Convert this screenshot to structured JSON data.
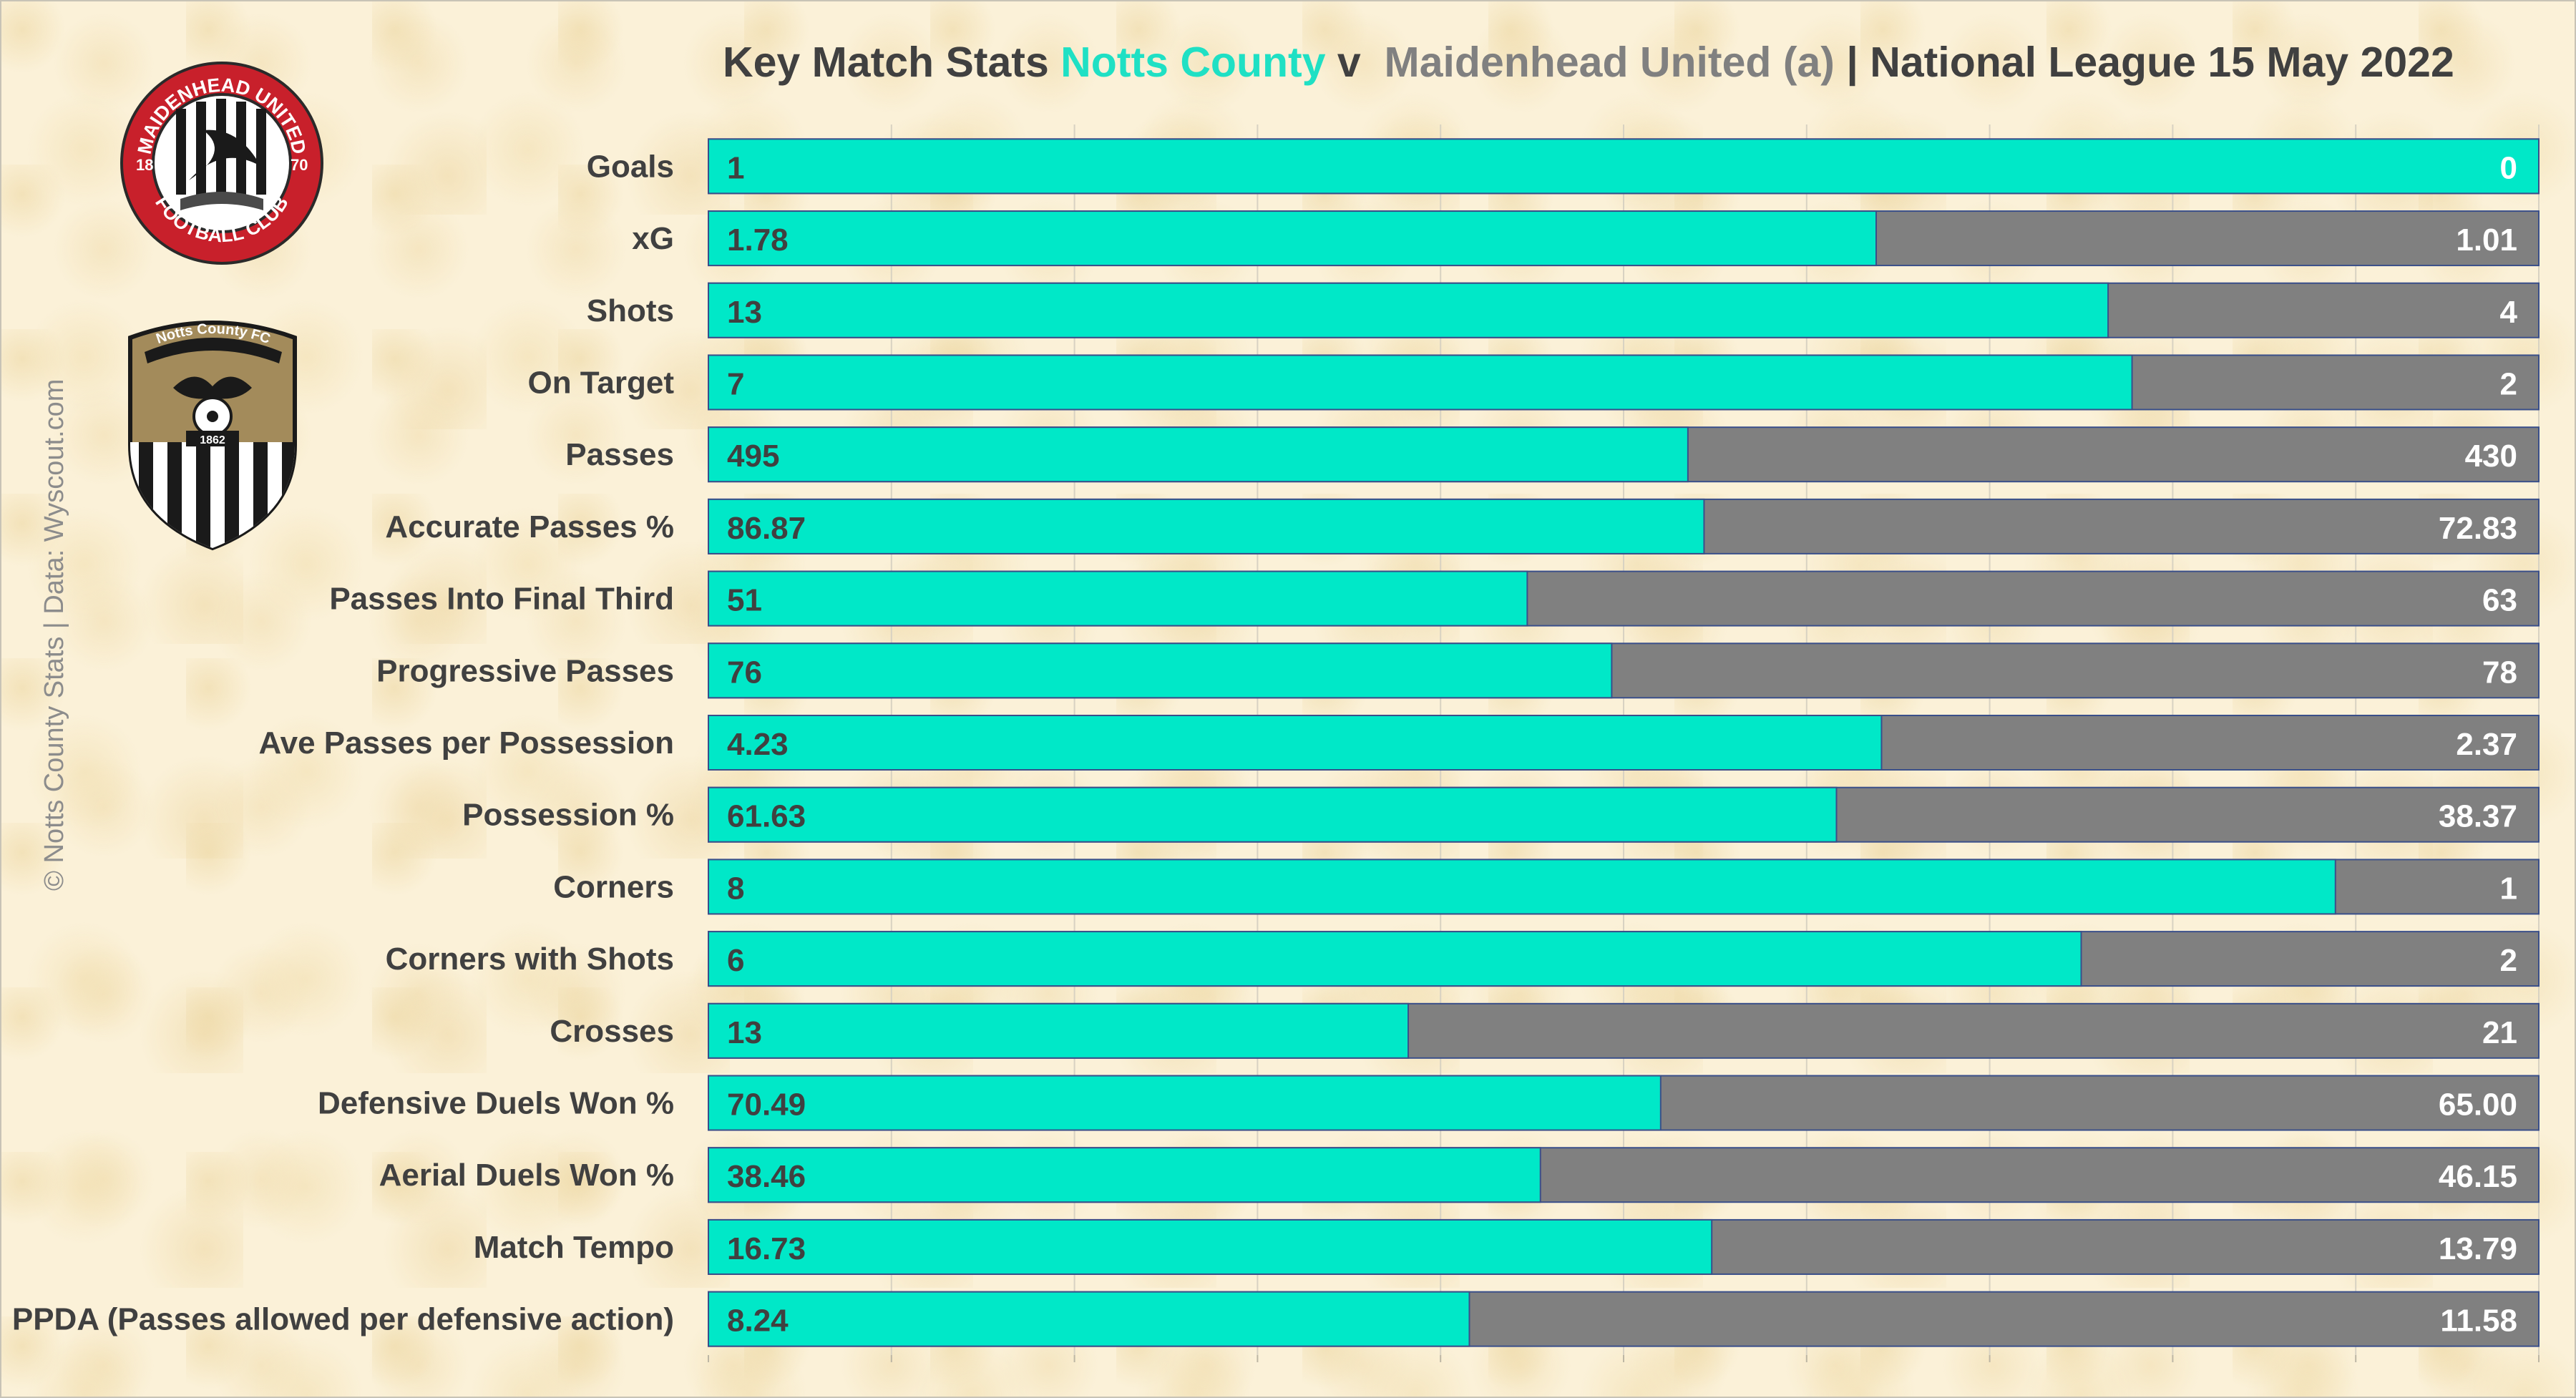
{
  "title": {
    "prefix": "Key Match Stats",
    "home_team": "Notts County",
    "separator": "v",
    "away_team": "Maidenhead United (a)",
    "suffix": "| National League 15 May 2022"
  },
  "credit": "© Notts County Stats | Data: Wyscout.com",
  "logos": {
    "maidenhead": {
      "ring_top": "MAIDENHEAD UNITED",
      "ring_bottom": "FOOTBALL CLUB",
      "year_left": "18",
      "year_right": "70",
      "icon": "magpie-crest-icon"
    },
    "notts": {
      "banner": "Notts County FC",
      "year": "1862",
      "icon": "magpie-shield-icon"
    }
  },
  "colors": {
    "home": "#00e8c8",
    "away": "#808080",
    "title_home": "#1fe0c4",
    "title_away": "#808080",
    "text": "#404040",
    "value_home": "#404040",
    "value_away": "#ffffff"
  },
  "chart_data": {
    "type": "bar",
    "orientation": "horizontal",
    "stacking": "100% stacked",
    "grid": true,
    "legend": "none",
    "categories": [
      "Goals",
      "xG",
      "Shots",
      "On Target",
      "Passes",
      "Accurate Passes %",
      "Passes Into Final Third",
      "Progressive Passes",
      "Ave Passes per Possession",
      "Possession %",
      "Corners",
      "Corners with Shots",
      "Crosses",
      "Defensive Duels Won %",
      "Aerial Duels Won %",
      "Match Tempo",
      "PPDA (Passes allowed per defensive action)"
    ],
    "series": [
      {
        "name": "Notts County",
        "labels": [
          "1",
          "1.78",
          "13",
          "7",
          "495",
          "86.87",
          "51",
          "76",
          "4.23",
          "61.63",
          "8",
          "6",
          "13",
          "70.49",
          "38.46",
          "16.73",
          "8.24"
        ],
        "values": [
          1,
          1.78,
          13,
          7,
          495,
          86.87,
          51,
          76,
          4.23,
          61.63,
          8,
          6,
          13,
          70.49,
          38.46,
          16.73,
          8.24
        ]
      },
      {
        "name": "Maidenhead United (a)",
        "labels": [
          "0",
          "1.01",
          "4",
          "2",
          "430",
          "72.83",
          "63",
          "78",
          "2.37",
          "38.37",
          "1",
          "2",
          "21",
          "65.00",
          "46.15",
          "13.79",
          "11.58"
        ],
        "values": [
          0,
          1.01,
          4,
          2,
          430,
          72.83,
          63,
          78,
          2.37,
          38.37,
          1,
          2,
          21,
          65.0,
          46.15,
          13.79,
          11.58
        ]
      }
    ]
  }
}
